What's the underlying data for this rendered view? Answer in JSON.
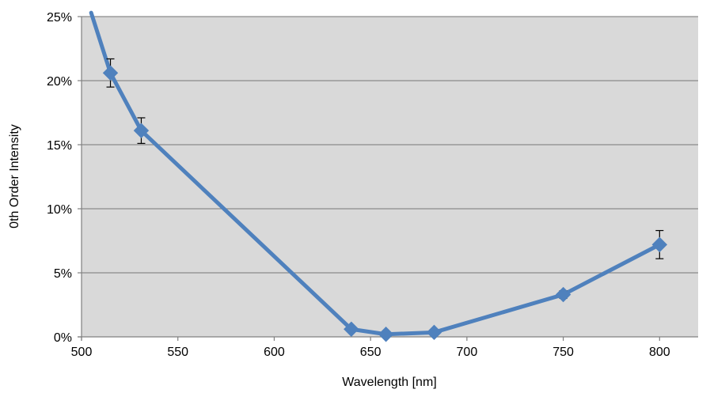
{
  "chart_data": {
    "type": "line",
    "title": "",
    "xlabel": "Wavelength [nm]",
    "ylabel": "0th Order Intensity",
    "xlim": [
      500,
      820
    ],
    "ylim": [
      0,
      25
    ],
    "x_ticks": [
      500,
      550,
      600,
      650,
      700,
      750,
      800
    ],
    "x_tick_labels": [
      "500",
      "550",
      "600",
      "650",
      "700",
      "750",
      "800"
    ],
    "y_ticks": [
      0,
      5,
      10,
      15,
      20,
      25
    ],
    "y_tick_labels": [
      "0%",
      "5%",
      "10%",
      "15%",
      "20%",
      "25%"
    ],
    "y_unit": "%",
    "grid": "horizontal",
    "legend": "none",
    "plot_background": "#d9d9d9",
    "line_start": {
      "x": 505,
      "y": 25.3
    },
    "series": [
      {
        "color": "#4f81bd",
        "marker": "diamond",
        "points": [
          {
            "x": 515,
            "y": 20.6,
            "err": 1.1
          },
          {
            "x": 531,
            "y": 16.1,
            "err": 1.0
          },
          {
            "x": 640,
            "y": 0.6,
            "err": 0
          },
          {
            "x": 658,
            "y": 0.2,
            "err": 0
          },
          {
            "x": 683,
            "y": 0.35,
            "err": 0
          },
          {
            "x": 750,
            "y": 3.3,
            "err": 0.3
          },
          {
            "x": 800,
            "y": 7.2,
            "err": 1.1
          }
        ]
      }
    ]
  }
}
